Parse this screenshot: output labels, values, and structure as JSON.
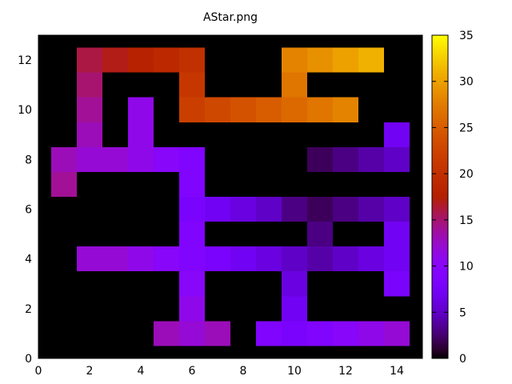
{
  "chart_data": {
    "type": "heatmap",
    "title": "AStar.png",
    "xlabel": "",
    "ylabel": "",
    "xlim": [
      0,
      15
    ],
    "ylim": [
      0,
      13
    ],
    "x_ticks": [
      0,
      2,
      4,
      6,
      8,
      10,
      12,
      14
    ],
    "y_ticks": [
      0,
      2,
      4,
      6,
      8,
      10,
      12
    ],
    "colorbar": {
      "min": 0,
      "max": 35,
      "ticks": [
        0,
        5,
        10,
        15,
        20,
        25,
        30,
        35
      ],
      "palette": "gnuplot"
    },
    "background_value": 0,
    "cells": [
      {
        "x": 2,
        "y": 12,
        "v": 16
      },
      {
        "x": 3,
        "y": 12,
        "v": 17
      },
      {
        "x": 4,
        "y": 12,
        "v": 18
      },
      {
        "x": 5,
        "y": 12,
        "v": 19
      },
      {
        "x": 6,
        "y": 12,
        "v": 20
      },
      {
        "x": 10,
        "y": 12,
        "v": 28
      },
      {
        "x": 11,
        "y": 12,
        "v": 29
      },
      {
        "x": 12,
        "y": 12,
        "v": 30
      },
      {
        "x": 13,
        "y": 12,
        "v": 31
      },
      {
        "x": 2,
        "y": 11,
        "v": 15
      },
      {
        "x": 6,
        "y": 11,
        "v": 21
      },
      {
        "x": 10,
        "y": 11,
        "v": 27
      },
      {
        "x": 2,
        "y": 10,
        "v": 14
      },
      {
        "x": 4,
        "y": 10,
        "v": 11
      },
      {
        "x": 6,
        "y": 10,
        "v": 22
      },
      {
        "x": 7,
        "y": 10,
        "v": 23
      },
      {
        "x": 8,
        "y": 10,
        "v": 24
      },
      {
        "x": 9,
        "y": 10,
        "v": 25
      },
      {
        "x": 10,
        "y": 10,
        "v": 26
      },
      {
        "x": 11,
        "y": 10,
        "v": 27
      },
      {
        "x": 12,
        "y": 10,
        "v": 28
      },
      {
        "x": 2,
        "y": 9,
        "v": 13
      },
      {
        "x": 4,
        "y": 9,
        "v": 11
      },
      {
        "x": 14,
        "y": 9,
        "v": 7
      },
      {
        "x": 1,
        "y": 8,
        "v": 13
      },
      {
        "x": 2,
        "y": 8,
        "v": 12
      },
      {
        "x": 3,
        "y": 8,
        "v": 12
      },
      {
        "x": 4,
        "y": 8,
        "v": 11
      },
      {
        "x": 5,
        "y": 8,
        "v": 10
      },
      {
        "x": 6,
        "y": 8,
        "v": 9
      },
      {
        "x": 11,
        "y": 8,
        "v": 2
      },
      {
        "x": 12,
        "y": 8,
        "v": 3
      },
      {
        "x": 13,
        "y": 8,
        "v": 4
      },
      {
        "x": 14,
        "y": 8,
        "v": 5
      },
      {
        "x": 1,
        "y": 7,
        "v": 14
      },
      {
        "x": 6,
        "y": 7,
        "v": 9
      },
      {
        "x": 6,
        "y": 6,
        "v": 8
      },
      {
        "x": 7,
        "y": 6,
        "v": 7
      },
      {
        "x": 8,
        "y": 6,
        "v": 6
      },
      {
        "x": 9,
        "y": 6,
        "v": 5
      },
      {
        "x": 10,
        "y": 6,
        "v": 3
      },
      {
        "x": 11,
        "y": 6,
        "v": 2
      },
      {
        "x": 12,
        "y": 6,
        "v": 3
      },
      {
        "x": 13,
        "y": 6,
        "v": 4
      },
      {
        "x": 14,
        "y": 6,
        "v": 5
      },
      {
        "x": 6,
        "y": 5,
        "v": 9
      },
      {
        "x": 11,
        "y": 5,
        "v": 3
      },
      {
        "x": 14,
        "y": 5,
        "v": 7
      },
      {
        "x": 2,
        "y": 4,
        "v": 12
      },
      {
        "x": 3,
        "y": 4,
        "v": 12
      },
      {
        "x": 4,
        "y": 4,
        "v": 11
      },
      {
        "x": 5,
        "y": 4,
        "v": 10
      },
      {
        "x": 6,
        "y": 4,
        "v": 9
      },
      {
        "x": 7,
        "y": 4,
        "v": 8
      },
      {
        "x": 8,
        "y": 4,
        "v": 7
      },
      {
        "x": 9,
        "y": 4,
        "v": 6
      },
      {
        "x": 10,
        "y": 4,
        "v": 5
      },
      {
        "x": 11,
        "y": 4,
        "v": 4
      },
      {
        "x": 12,
        "y": 4,
        "v": 5
      },
      {
        "x": 13,
        "y": 4,
        "v": 6
      },
      {
        "x": 14,
        "y": 4,
        "v": 7
      },
      {
        "x": 6,
        "y": 3,
        "v": 10
      },
      {
        "x": 10,
        "y": 3,
        "v": 6
      },
      {
        "x": 14,
        "y": 3,
        "v": 8
      },
      {
        "x": 6,
        "y": 2,
        "v": 11
      },
      {
        "x": 10,
        "y": 2,
        "v": 7
      },
      {
        "x": 5,
        "y": 1,
        "v": 13
      },
      {
        "x": 6,
        "y": 1,
        "v": 12
      },
      {
        "x": 7,
        "y": 1,
        "v": 13
      },
      {
        "x": 9,
        "y": 1,
        "v": 9
      },
      {
        "x": 10,
        "y": 1,
        "v": 8
      },
      {
        "x": 11,
        "y": 1,
        "v": 9
      },
      {
        "x": 12,
        "y": 1,
        "v": 10
      },
      {
        "x": 13,
        "y": 1,
        "v": 11
      },
      {
        "x": 14,
        "y": 1,
        "v": 12
      }
    ]
  }
}
